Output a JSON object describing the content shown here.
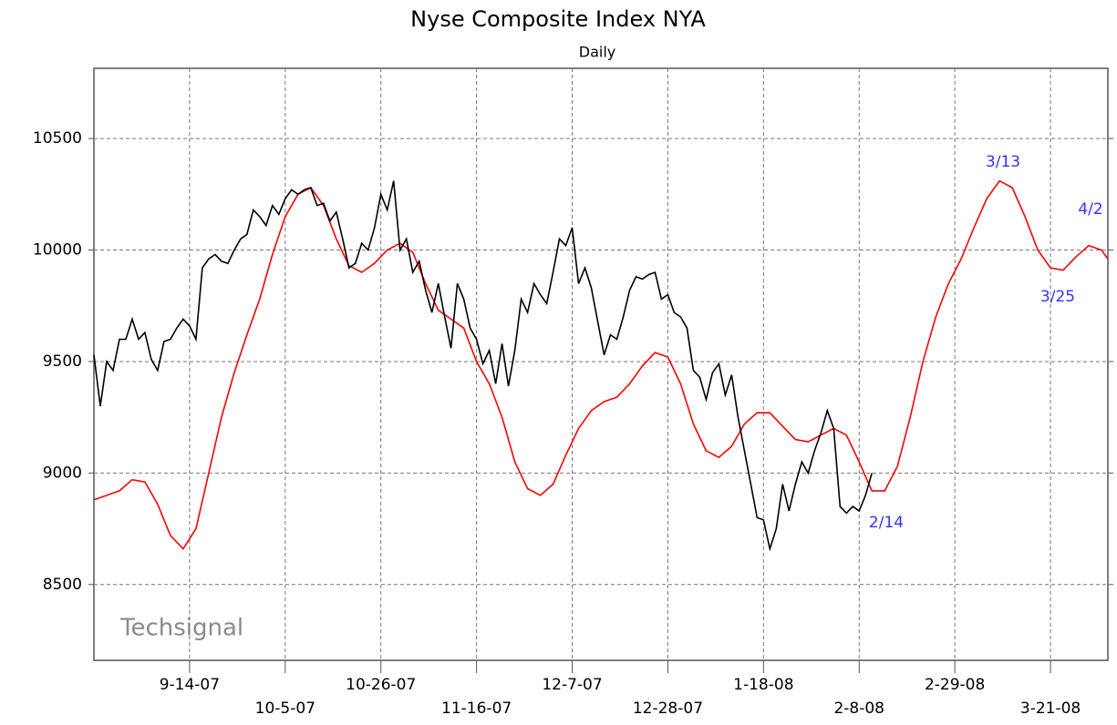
{
  "chart_data": {
    "type": "line",
    "title": "Nyse Composite Index NYA",
    "subtitle": "Daily",
    "watermark": "Techsignal",
    "annotations": [
      "3/13",
      "4/2",
      "3/25",
      "2/14"
    ],
    "annotation_color": "#3333ff",
    "xlim": [
      0,
      159
    ],
    "xticks": [
      {
        "value": 15,
        "label": "9-14-07"
      },
      {
        "value": 30,
        "label": "10-5-07"
      },
      {
        "value": 45,
        "label": "10-26-07"
      },
      {
        "value": 60,
        "label": "11-16-07"
      },
      {
        "value": 75,
        "label": "12-7-07"
      },
      {
        "value": 90,
        "label": "12-28-07"
      },
      {
        "value": 105,
        "label": "1-18-08"
      },
      {
        "value": 120,
        "label": "2-8-08"
      },
      {
        "value": 135,
        "label": "2-29-08"
      },
      {
        "value": 150,
        "label": "3-21-08"
      }
    ],
    "ylim": [
      8160,
      10815
    ],
    "yticks": [
      8500,
      9000,
      9500,
      10000,
      10500
    ],
    "grid": true,
    "series": [
      {
        "color": "#000000",
        "x": [
          0,
          1,
          2,
          3,
          4,
          5,
          6,
          7,
          8,
          9,
          10,
          11,
          12,
          13,
          14,
          15,
          16,
          17,
          18,
          19,
          20,
          21,
          22,
          23,
          24,
          25,
          26,
          27,
          28,
          29,
          30,
          31,
          32,
          33,
          34,
          35,
          36,
          37,
          38,
          39,
          40,
          41,
          42,
          43,
          44,
          45,
          46,
          47,
          48,
          49,
          50,
          51,
          52,
          53,
          54,
          55,
          56,
          57,
          58,
          59,
          60,
          61,
          62,
          63,
          64,
          65,
          66,
          67,
          68,
          69,
          70,
          71,
          72,
          73,
          74,
          75,
          76,
          77,
          78,
          79,
          80,
          81,
          82,
          83,
          84,
          85,
          86,
          87,
          88,
          89,
          90,
          91,
          92,
          93,
          94,
          95,
          96,
          97,
          98,
          99,
          100,
          101,
          102,
          103,
          104,
          105,
          106,
          107,
          108,
          109,
          110,
          111,
          112,
          113,
          114,
          115,
          116,
          117,
          118,
          119,
          120,
          121,
          122
        ],
        "values": [
          9530,
          9300,
          9500,
          9460,
          9600,
          9600,
          9690,
          9600,
          9630,
          9510,
          9460,
          9590,
          9600,
          9650,
          9690,
          9660,
          9600,
          9920,
          9960,
          9980,
          9950,
          9940,
          10000,
          10050,
          10070,
          10180,
          10150,
          10110,
          10200,
          10160,
          10230,
          10270,
          10250,
          10270,
          10280,
          10200,
          10210,
          10130,
          10170,
          10050,
          9920,
          9940,
          10030,
          10000,
          10100,
          10250,
          10180,
          10310,
          10000,
          10050,
          9900,
          9950,
          9820,
          9720,
          9850,
          9700,
          9560,
          9850,
          9780,
          9650,
          9600,
          9490,
          9550,
          9400,
          9580,
          9390,
          9550,
          9780,
          9720,
          9850,
          9800,
          9760,
          9900,
          10050,
          10020,
          10100,
          9850,
          9920,
          9830,
          9680,
          9530,
          9620,
          9600,
          9700,
          9820,
          9880,
          9870,
          9890,
          9900,
          9780,
          9800,
          9720,
          9700,
          9650,
          9460,
          9430,
          9330,
          9450,
          9490,
          9350,
          9440,
          9250,
          9100,
          8950,
          8800,
          8790,
          8660,
          8750,
          8950,
          8830,
          8950,
          9050,
          9000,
          9100,
          9180,
          9280,
          9200,
          8850,
          8820,
          8850,
          8830,
          8900,
          9000
        ]
      },
      {
        "color": "#ff0000",
        "x": [
          0,
          4,
          6,
          8,
          10,
          12,
          14,
          16,
          18,
          20,
          22,
          24,
          26,
          28,
          30,
          32,
          34,
          36,
          38,
          40,
          42,
          44,
          46,
          48,
          50,
          52,
          54,
          56,
          58,
          60,
          62,
          64,
          66,
          68,
          70,
          72,
          74,
          76,
          78,
          80,
          82,
          84,
          86,
          88,
          90,
          92,
          94,
          96,
          98,
          100,
          102,
          104,
          106,
          108,
          110,
          112,
          114,
          116,
          118,
          120,
          122,
          124,
          126,
          128,
          130,
          132,
          134,
          136,
          138,
          140,
          142,
          144,
          146,
          148,
          150,
          152,
          154,
          156,
          158,
          159
        ],
        "values": [
          8880,
          8920,
          8970,
          8960,
          8860,
          8720,
          8660,
          8750,
          9000,
          9250,
          9450,
          9620,
          9780,
          9980,
          10150,
          10250,
          10280,
          10200,
          10050,
          9930,
          9900,
          9940,
          10000,
          10030,
          9990,
          9850,
          9730,
          9690,
          9650,
          9500,
          9400,
          9250,
          9050,
          8930,
          8900,
          8950,
          9080,
          9200,
          9280,
          9320,
          9340,
          9400,
          9480,
          9540,
          9520,
          9400,
          9220,
          9100,
          9070,
          9120,
          9220,
          9270,
          9270,
          9210,
          9150,
          9140,
          9170,
          9200,
          9170,
          9050,
          8920,
          8920,
          9030,
          9250,
          9500,
          9700,
          9850,
          9960,
          10100,
          10230,
          10310,
          10280,
          10150,
          10000,
          9920,
          9910,
          9970,
          10020,
          10000,
          9960
        ]
      }
    ]
  }
}
